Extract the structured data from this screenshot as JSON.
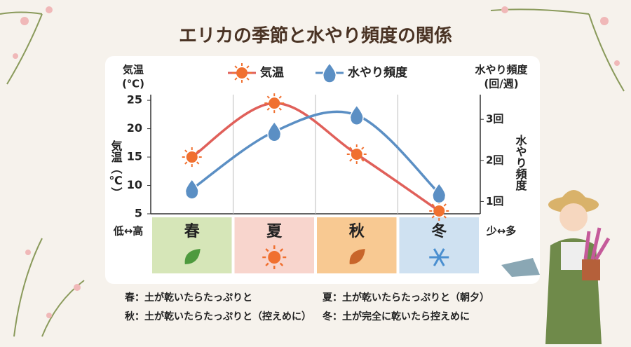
{
  "chart_data": {
    "type": "line",
    "title": "エリカの季節と水やり頻度の関係",
    "categories": [
      "春",
      "夏",
      "秋",
      "冬"
    ],
    "category_colors": [
      "#d6e6b8",
      "#f8d5cd",
      "#f8c992",
      "#cfe1f1"
    ],
    "series": [
      {
        "name": "気温",
        "color": "#e0605a",
        "marker": "sun",
        "values": [
          15,
          24.5,
          15.5,
          5.5
        ]
      },
      {
        "name": "水やり頻度",
        "color": "#5b8fc4",
        "marker": "drop",
        "axis": "y2",
        "values": [
          1.3,
          2.7,
          3.1,
          1.2
        ]
      }
    ],
    "ylim": [
      5,
      26
    ],
    "yticks": [
      5,
      10,
      15,
      20,
      25
    ],
    "y2lim": [
      0.7,
      3.6
    ],
    "y2ticks": [
      {
        "value": 1,
        "label": "1回"
      },
      {
        "value": 2,
        "label": "2回"
      },
      {
        "value": 3,
        "label": "3回"
      }
    ],
    "ylabel_lines": [
      "気温",
      "(℃)"
    ],
    "y2label_lines": [
      "水やり頻度",
      "(回/週)"
    ],
    "y_side_label": "気温（℃）",
    "y2_side_label": "水やり頻度",
    "y_scale_note": "低↔高",
    "y2_scale_note": "少↔多",
    "grid": true,
    "notes": [
      "春：土が乾いたらたっぷりと",
      "夏：土が乾いたらたっぷりと（朝夕）",
      "秋：土が乾いたらたっぷりと（控えめに）",
      "冬：土が完全に乾いたら控えめに"
    ]
  }
}
